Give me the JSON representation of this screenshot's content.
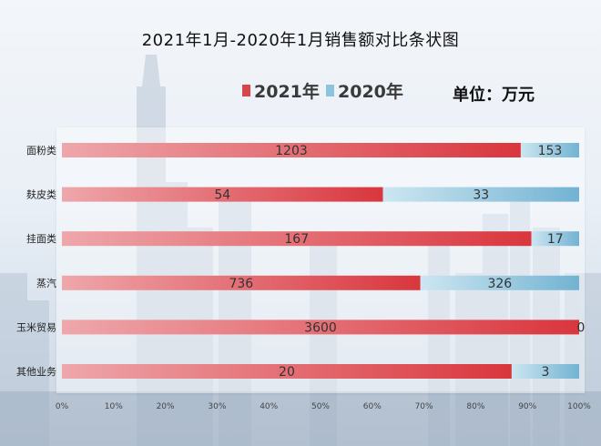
{
  "chart_data": {
    "type": "bar",
    "orientation": "horizontal",
    "stacking": "percent",
    "title": "2021年1月-2020年1月销售额对比条状图",
    "unit": "单位：万元",
    "categories": [
      "面粉类",
      "麸皮类",
      "挂面类",
      "蒸汽",
      "玉米贸易",
      "其他业务"
    ],
    "series": [
      {
        "name": "2021年",
        "values": [
          1203,
          54,
          167,
          736,
          3600,
          20
        ],
        "color": "#d9454a"
      },
      {
        "name": "2020年",
        "values": [
          153,
          33,
          17,
          326,
          0,
          3
        ],
        "color": "#8dc3dc"
      }
    ],
    "x_ticks": [
      "0%",
      "10%",
      "20%",
      "30%",
      "40%",
      "50%",
      "60%",
      "70%",
      "80%",
      "90%",
      "100%"
    ],
    "xlim": [
      0,
      100
    ],
    "legend_position": "top"
  }
}
